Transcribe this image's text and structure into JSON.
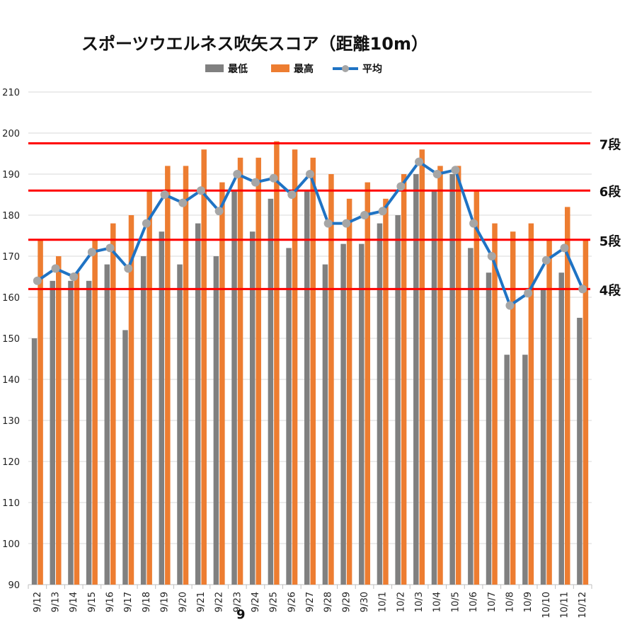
{
  "chart_data": {
    "type": "bar",
    "title": "スポーツウエルネス吹矢スコア（距離10m）",
    "xlabel": "",
    "ylabel": "",
    "ylim": [
      90,
      210
    ],
    "yticks": [
      "90",
      "100",
      "110",
      "120",
      "130",
      "140",
      "150",
      "160",
      "170",
      "180",
      "190",
      "200",
      "210"
    ],
    "grid": true,
    "legend_position": "top",
    "categories": [
      "9/12",
      "9/13",
      "9/14",
      "9/15",
      "9/16",
      "9/17",
      "9/18",
      "9/19",
      "9/20",
      "9/21",
      "9/22",
      "9/23",
      "9/24",
      "9/25",
      "9/26",
      "9/27",
      "9/28",
      "9/29",
      "9/30",
      "10/1",
      "10/2",
      "10/3",
      "10/4",
      "10/5",
      "10/6",
      "10/7",
      "10/8",
      "10/9",
      "10/10",
      "10/11",
      "10/12"
    ],
    "series": [
      {
        "name": "最低",
        "type": "bar",
        "color": "#808080",
        "values": [
          150,
          164,
          164,
          164,
          168,
          152,
          170,
          176,
          168,
          178,
          170,
          186,
          176,
          184,
          172,
          186,
          168,
          173,
          173,
          178,
          180,
          190,
          186,
          190,
          172,
          166,
          146,
          146,
          162,
          166,
          155
        ]
      },
      {
        "name": "最高",
        "type": "bar",
        "color": "#ED7D31",
        "values": [
          174,
          170,
          166,
          174,
          178,
          180,
          186,
          192,
          192,
          196,
          188,
          194,
          194,
          198,
          196,
          194,
          190,
          184,
          188,
          184,
          190,
          196,
          192,
          192,
          186,
          178,
          176,
          178,
          174,
          182,
          174
        ]
      },
      {
        "name": "平均",
        "type": "line",
        "color": "#1F73C4",
        "marker_color": "#A6A6A6",
        "values": [
          164,
          167,
          165,
          171,
          172,
          167,
          178,
          185,
          183,
          186,
          181,
          190,
          188,
          189,
          185,
          190,
          178,
          178,
          180,
          181,
          187,
          193,
          190,
          191,
          178,
          170,
          158,
          161,
          169,
          172,
          162
        ]
      }
    ],
    "reference_lines": [
      {
        "label": "7段",
        "y": 197.5,
        "color": "#FF0000"
      },
      {
        "label": "6段",
        "y": 186,
        "color": "#FF0000"
      },
      {
        "label": "5段",
        "y": 174,
        "color": "#FF0000"
      },
      {
        "label": "4段",
        "y": 162,
        "color": "#FF0000"
      }
    ],
    "annotations": [
      {
        "text": "9",
        "category": "9/23"
      }
    ]
  }
}
